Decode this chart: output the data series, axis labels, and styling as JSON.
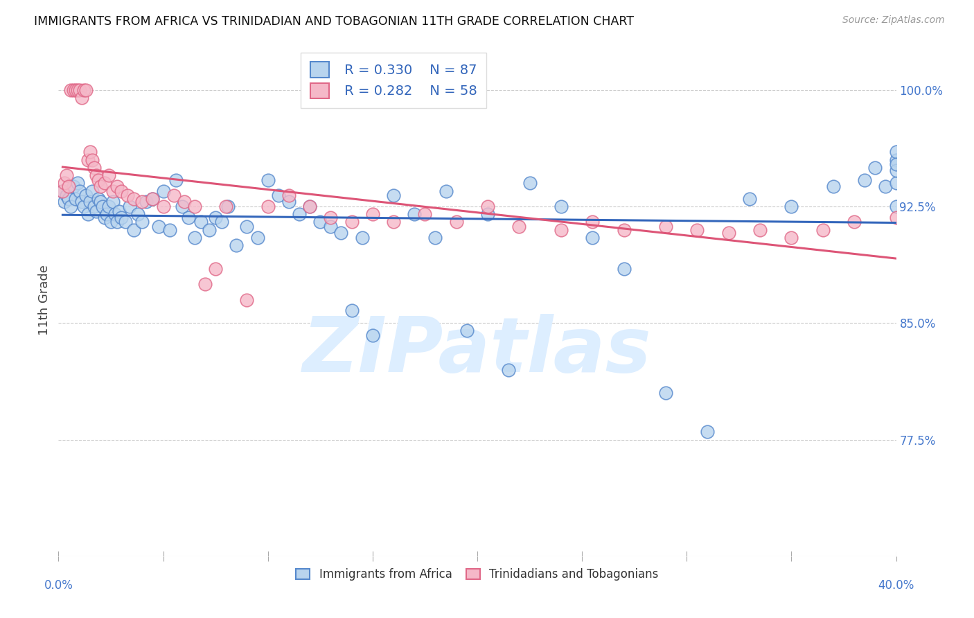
{
  "title": "IMMIGRANTS FROM AFRICA VS TRINIDADIAN AND TOBAGONIAN 11TH GRADE CORRELATION CHART",
  "source": "Source: ZipAtlas.com",
  "ylabel": "11th Grade",
  "y_ticks": [
    77.5,
    85.0,
    92.5,
    100.0
  ],
  "y_tick_labels": [
    "77.5%",
    "85.0%",
    "92.5%",
    "100.0%"
  ],
  "xlim": [
    0.0,
    40.0
  ],
  "ylim": [
    70.0,
    103.0
  ],
  "legend_blue_r": "R = 0.330",
  "legend_blue_n": "N = 87",
  "legend_pink_r": "R = 0.282",
  "legend_pink_n": "N = 58",
  "blue_fill": "#b8d4ee",
  "pink_fill": "#f5b8c8",
  "blue_edge": "#5588cc",
  "pink_edge": "#e06888",
  "blue_line": "#3366bb",
  "pink_line": "#dd5577",
  "watermark_color": "#ddeeff",
  "blue_scatter_x": [
    0.2,
    0.3,
    0.4,
    0.5,
    0.6,
    0.7,
    0.8,
    0.9,
    1.0,
    1.1,
    1.2,
    1.3,
    1.4,
    1.5,
    1.6,
    1.7,
    1.8,
    1.9,
    2.0,
    2.1,
    2.2,
    2.3,
    2.4,
    2.5,
    2.6,
    2.7,
    2.8,
    2.9,
    3.0,
    3.2,
    3.4,
    3.6,
    3.8,
    4.0,
    4.2,
    4.5,
    4.8,
    5.0,
    5.3,
    5.6,
    5.9,
    6.2,
    6.5,
    6.8,
    7.2,
    7.5,
    7.8,
    8.1,
    8.5,
    9.0,
    9.5,
    10.0,
    10.5,
    11.0,
    11.5,
    12.0,
    12.5,
    13.0,
    13.5,
    14.0,
    14.5,
    15.0,
    16.0,
    17.0,
    18.0,
    18.5,
    19.5,
    20.5,
    21.5,
    22.5,
    24.0,
    25.5,
    27.0,
    29.0,
    31.0,
    33.0,
    35.0,
    37.0,
    38.5,
    39.0,
    39.5,
    40.0,
    40.0,
    40.0,
    40.0,
    40.0,
    40.0
  ],
  "blue_scatter_y": [
    93.5,
    92.8,
    93.2,
    93.0,
    92.5,
    93.8,
    93.0,
    94.0,
    93.5,
    92.8,
    92.5,
    93.2,
    92.0,
    92.8,
    93.5,
    92.5,
    92.2,
    93.0,
    92.8,
    92.5,
    91.8,
    92.0,
    92.5,
    91.5,
    92.8,
    92.0,
    91.5,
    92.2,
    91.8,
    91.5,
    92.5,
    91.0,
    92.0,
    91.5,
    92.8,
    93.0,
    91.2,
    93.5,
    91.0,
    94.2,
    92.5,
    91.8,
    90.5,
    91.5,
    91.0,
    91.8,
    91.5,
    92.5,
    90.0,
    91.2,
    90.5,
    94.2,
    93.2,
    92.8,
    92.0,
    92.5,
    91.5,
    91.2,
    90.8,
    85.8,
    90.5,
    84.2,
    93.2,
    92.0,
    90.5,
    93.5,
    84.5,
    92.0,
    82.0,
    94.0,
    92.5,
    90.5,
    88.5,
    80.5,
    78.0,
    93.0,
    92.5,
    93.8,
    94.2,
    95.0,
    93.8,
    92.5,
    94.0,
    95.5,
    96.0,
    94.8,
    95.2
  ],
  "pink_scatter_x": [
    0.2,
    0.3,
    0.4,
    0.5,
    0.6,
    0.7,
    0.8,
    0.9,
    1.0,
    1.1,
    1.2,
    1.3,
    1.4,
    1.5,
    1.6,
    1.7,
    1.8,
    1.9,
    2.0,
    2.2,
    2.4,
    2.6,
    2.8,
    3.0,
    3.3,
    3.6,
    4.0,
    4.5,
    5.0,
    5.5,
    6.0,
    6.5,
    7.0,
    7.5,
    8.0,
    9.0,
    10.0,
    11.0,
    12.0,
    13.0,
    14.0,
    15.0,
    16.0,
    17.5,
    19.0,
    20.5,
    22.0,
    24.0,
    25.5,
    27.0,
    29.0,
    30.5,
    32.0,
    33.5,
    35.0,
    36.5,
    38.0,
    40.0
  ],
  "pink_scatter_y": [
    93.5,
    94.0,
    94.5,
    93.8,
    100.0,
    100.0,
    100.0,
    100.0,
    100.0,
    99.5,
    100.0,
    100.0,
    95.5,
    96.0,
    95.5,
    95.0,
    94.5,
    94.2,
    93.8,
    94.0,
    94.5,
    93.5,
    93.8,
    93.5,
    93.2,
    93.0,
    92.8,
    93.0,
    92.5,
    93.2,
    92.8,
    92.5,
    87.5,
    88.5,
    92.5,
    86.5,
    92.5,
    93.2,
    92.5,
    91.8,
    91.5,
    92.0,
    91.5,
    92.0,
    91.5,
    92.5,
    91.2,
    91.0,
    91.5,
    91.0,
    91.2,
    91.0,
    90.8,
    91.0,
    90.5,
    91.0,
    91.5,
    91.8
  ]
}
